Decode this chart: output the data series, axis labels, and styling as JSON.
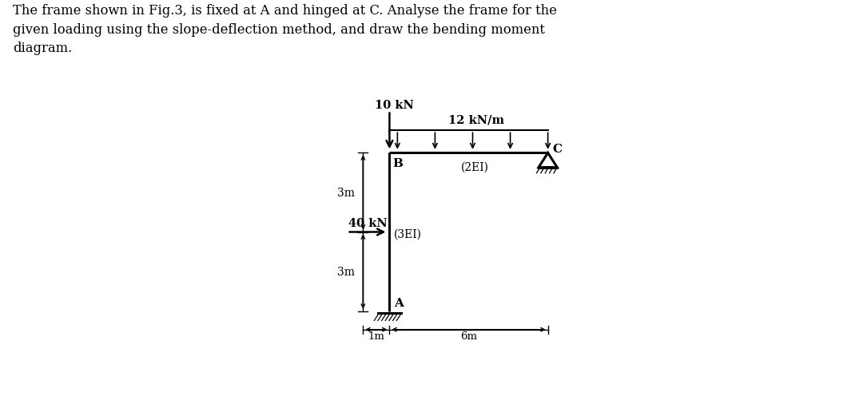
{
  "title_text": "The frame shown in Fig.3, is fixed at A and hinged at C. Analyse the frame for the\ngiven loading using the slope-deflection method, and draw the bending moment\ndiagram.",
  "background_color": "#ffffff",
  "text_color": "#000000",
  "frame_color": "#000000",
  "fig_width": 10.8,
  "fig_height": 5.02,
  "A_x": 4.5,
  "A_y": 0.5,
  "B_x": 4.5,
  "B_y": 6.5,
  "C_x": 10.5,
  "C_y": 6.5,
  "label_A": "A",
  "label_B": "B",
  "label_C": "C",
  "label_AB_stiffness": "(3EI)",
  "label_BC_stiffness": "(2EI)",
  "load_horizontal_label": "40 kN",
  "load_horizontal_y": 3.5,
  "load_vertical_label": "10 kN",
  "load_udl_label": "12 kN/m",
  "dim_3m_upper_label": "3m",
  "dim_3m_lower_label": "3m",
  "dim_1m_label": "1m",
  "dim_6m_label": "6m",
  "udl_arrows_count": 5,
  "xlim": [
    0,
    13
  ],
  "ylim": [
    -1.2,
    10.5
  ]
}
